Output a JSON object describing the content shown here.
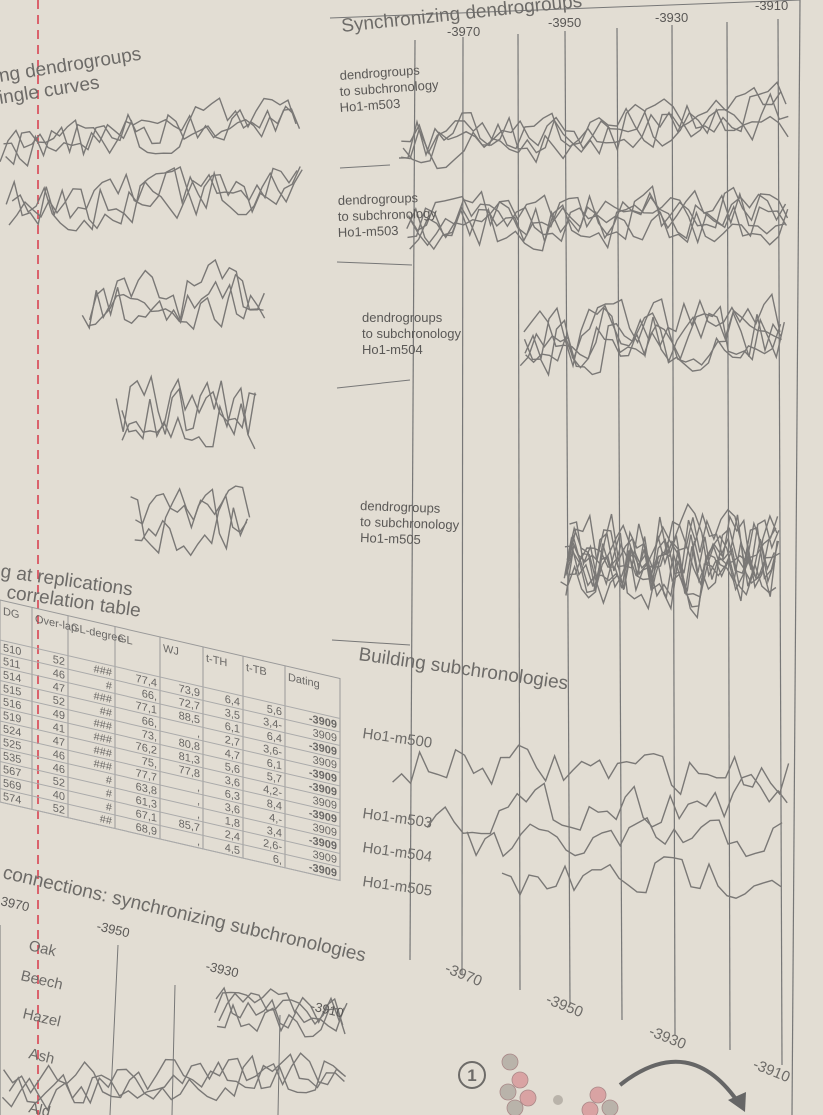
{
  "left_panel": {
    "title_lines": [
      "ng dendrogroups",
      "ingle curves"
    ]
  },
  "sync_panel": {
    "title": "Synchronizing dendrogroups",
    "ticks": [
      "-3970",
      "-3950",
      "-3930",
      "-3910"
    ],
    "groups": [
      {
        "lines": [
          "dendrogroups",
          "to subchronology",
          "Ho1-m503"
        ]
      },
      {
        "lines": [
          "dendrogroups",
          "to subchronology",
          "Ho1-m503"
        ]
      },
      {
        "lines": [
          "dendrogroups",
          "to subchronology",
          "Ho1-m504"
        ]
      },
      {
        "lines": [
          "dendrogroups",
          "to subchronology",
          "Ho1-m505"
        ]
      }
    ]
  },
  "build_panel": {
    "title": "Building subchronologies",
    "labels": [
      "Ho1-m500",
      "Ho1-m503",
      "Ho1-m504",
      "Ho1-m505"
    ],
    "ticks": [
      "-3970",
      "-3950",
      "-3930",
      "-3910"
    ]
  },
  "table_panel": {
    "title_lines": [
      "g at replications",
      "correlation  table"
    ],
    "headers": [
      "DG",
      "Over-lap",
      "GL-degree",
      "GL",
      "WJ",
      "t-TH",
      "t-TB",
      "Dating"
    ],
    "rows": [
      [
        "510",
        "52",
        "###",
        "77,4",
        "73,9",
        "6,4",
        "5,6",
        "-3909"
      ],
      [
        "511",
        "46",
        "#",
        "66,",
        "72,7",
        "3,5",
        "3,4-",
        "3909"
      ],
      [
        "514",
        "47",
        "###",
        "77,1",
        "88,5",
        "6,1",
        "6,4",
        "-3909"
      ],
      [
        "515",
        "52",
        "##",
        "66,",
        ",",
        "2,7",
        "3,6-",
        "3909"
      ],
      [
        "516",
        "49",
        "###",
        "73,",
        "80,8",
        "4,7",
        "6,1",
        "-3909"
      ],
      [
        "519",
        "41",
        "###",
        "76,2",
        "81,3",
        "5,6",
        "5,7",
        "-3909"
      ],
      [
        "524",
        "47",
        "###",
        "75,",
        "77,8",
        "3,6",
        "4,2-",
        "3909"
      ],
      [
        "525",
        "46",
        "###",
        "77,7",
        ",",
        "6,3",
        "8,4",
        "-3909"
      ],
      [
        "535",
        "46",
        "#",
        "63,8",
        ",",
        "3,6",
        "4,-",
        "3909"
      ],
      [
        "567",
        "52",
        "#",
        "61,3",
        ",",
        "1,8",
        "3,4",
        "-3909"
      ],
      [
        "569",
        "40",
        "#",
        "67,1",
        "85,7",
        "2,4",
        "2,6-",
        "3909"
      ],
      [
        "574",
        "52",
        "##",
        "68,9",
        ",",
        "4,5",
        "6,",
        "-3909"
      ]
    ]
  },
  "connections_panel": {
    "title": "connections: synchronizing subchronologies",
    "ticks": [
      "3970",
      "-3950",
      "-3930",
      "-3910"
    ],
    "species": [
      "Oak",
      "Beech",
      "Hazel",
      "Ash",
      "Ald"
    ]
  },
  "step_marker": "1"
}
